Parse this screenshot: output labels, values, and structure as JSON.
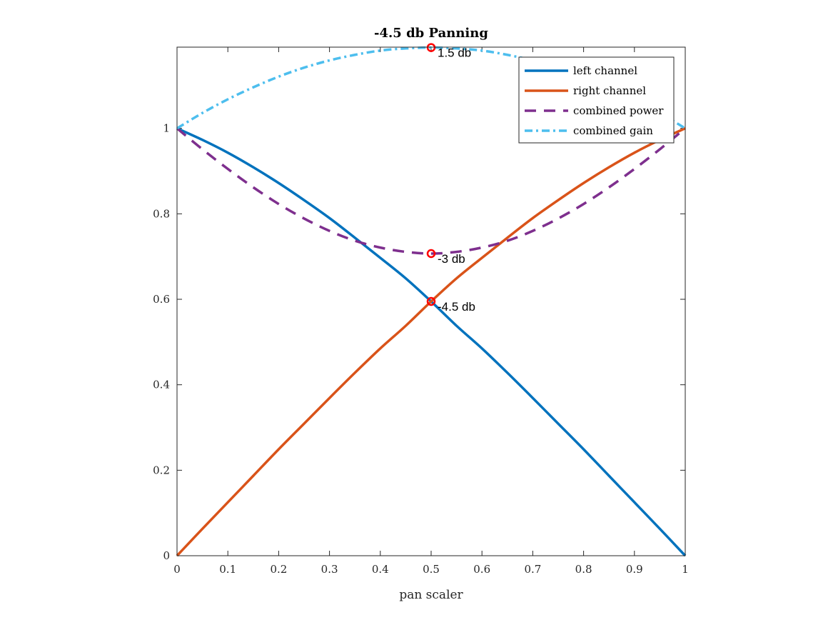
{
  "chart_data": {
    "type": "line",
    "title": "-4.5 db Panning",
    "xlabel": "pan scaler",
    "ylabel": "",
    "xlim": [
      0,
      1
    ],
    "ylim": [
      0,
      1.19
    ],
    "xticks": [
      "0",
      "0.1",
      "0.2",
      "0.3",
      "0.4",
      "0.5",
      "0.6",
      "0.7",
      "0.8",
      "0.9",
      "1"
    ],
    "yticks": [
      "0",
      "0.2",
      "0.4",
      "0.6",
      "0.8",
      "1"
    ],
    "grid": false,
    "box": true,
    "legend_position": "top-right",
    "x": [
      0,
      0.05,
      0.1,
      0.15,
      0.2,
      0.25,
      0.3,
      0.35,
      0.4,
      0.45,
      0.5,
      0.55,
      0.6,
      0.65,
      0.7,
      0.75,
      0.8,
      0.85,
      0.9,
      0.95,
      1
    ],
    "series": [
      {
        "name": "left channel",
        "color": "#0072BD",
        "style": "solid",
        "values": [
          1,
          0.973,
          0.943,
          0.909,
          0.872,
          0.832,
          0.79,
          0.744,
          0.697,
          0.649,
          0.595,
          0.538,
          0.485,
          0.428,
          0.369,
          0.309,
          0.249,
          0.187,
          0.125,
          0.063,
          0
        ]
      },
      {
        "name": "right channel",
        "color": "#D95319",
        "style": "solid",
        "values": [
          0,
          0.063,
          0.125,
          0.187,
          0.249,
          0.309,
          0.369,
          0.428,
          0.485,
          0.538,
          0.595,
          0.649,
          0.697,
          0.744,
          0.79,
          0.832,
          0.872,
          0.909,
          0.943,
          0.973,
          1
        ]
      },
      {
        "name": "combined power",
        "color": "#7E2F8E",
        "style": "dashed",
        "values": [
          1,
          0.951,
          0.905,
          0.862,
          0.823,
          0.789,
          0.76,
          0.737,
          0.721,
          0.711,
          0.707,
          0.711,
          0.721,
          0.737,
          0.76,
          0.789,
          0.823,
          0.862,
          0.905,
          0.951,
          1
        ]
      },
      {
        "name": "combined gain",
        "color": "#4DBEEE",
        "style": "dashdot",
        "values": [
          1,
          1.036,
          1.068,
          1.096,
          1.121,
          1.142,
          1.159,
          1.172,
          1.182,
          1.187,
          1.189,
          1.187,
          1.182,
          1.172,
          1.159,
          1.142,
          1.121,
          1.096,
          1.068,
          1.036,
          1
        ]
      }
    ],
    "annotations": [
      {
        "x": 0.5,
        "y": 1.189,
        "text": "1.5 db",
        "marker": "circle",
        "color": "#FF0000"
      },
      {
        "x": 0.5,
        "y": 0.707,
        "text": "-3 db",
        "marker": "circle",
        "color": "#FF0000"
      },
      {
        "x": 0.5,
        "y": 0.595,
        "text": "-4.5 db",
        "marker": "circle",
        "color": "#FF0000"
      }
    ]
  }
}
